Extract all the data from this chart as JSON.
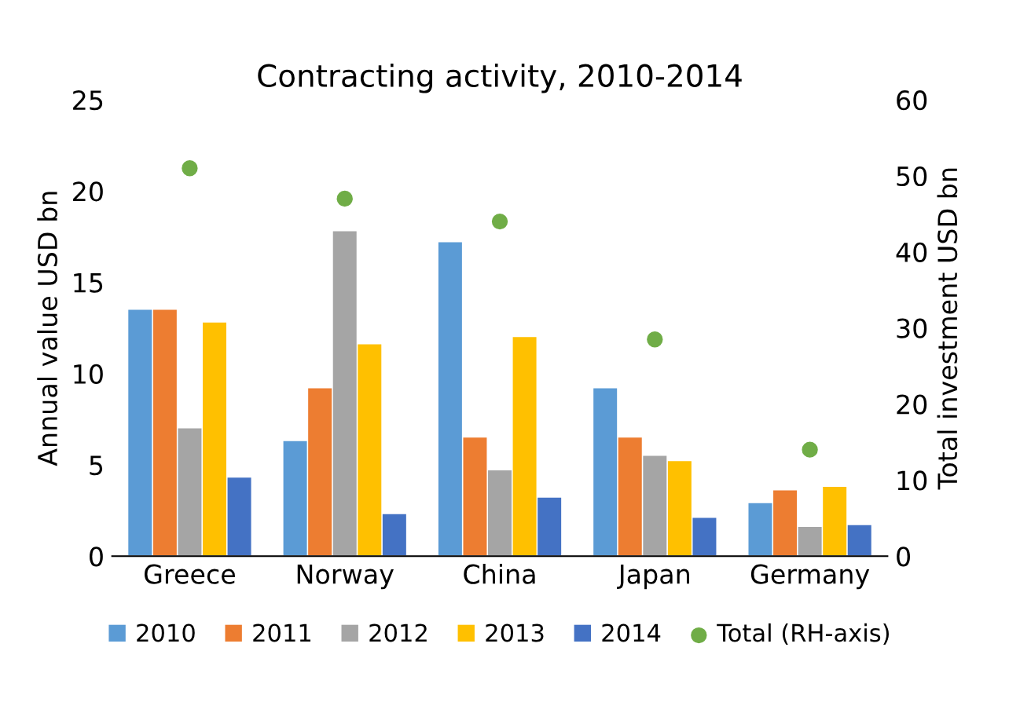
{
  "chart_data": {
    "type": "bar",
    "title": "Contracting activity, 2010-2014",
    "categories": [
      "Greece",
      "Norway",
      "China",
      "Japan",
      "Germany"
    ],
    "ylabel": "Annual value USD bn",
    "y2label": "Total investment USD bn",
    "ylim": [
      0,
      25
    ],
    "yticks": [
      0,
      5,
      10,
      15,
      20,
      25
    ],
    "y2lim": [
      0,
      60
    ],
    "y2ticks": [
      0,
      10,
      20,
      30,
      40,
      50,
      60
    ],
    "series": [
      {
        "name": "2010",
        "color": "#5b9bd5",
        "values": [
          13.5,
          6.3,
          17.2,
          9.2,
          2.9
        ]
      },
      {
        "name": "2011",
        "color": "#ed7d31",
        "values": [
          13.5,
          9.2,
          6.5,
          6.5,
          3.6
        ]
      },
      {
        "name": "2012",
        "color": "#a5a5a5",
        "values": [
          7.0,
          17.8,
          4.7,
          5.5,
          1.6
        ]
      },
      {
        "name": "2013",
        "color": "#ffc000",
        "values": [
          12.8,
          11.6,
          12.0,
          5.2,
          3.8
        ]
      },
      {
        "name": "2014",
        "color": "#4472c4",
        "values": [
          4.3,
          2.3,
          3.2,
          2.1,
          1.7
        ]
      },
      {
        "name": "Total (RH-axis)",
        "type": "scatter",
        "axis": "y2",
        "color": "#70ad47",
        "marker": "circle",
        "values": [
          51,
          47,
          44,
          28.5,
          14
        ]
      }
    ],
    "grid": false,
    "legend": "bottom"
  }
}
